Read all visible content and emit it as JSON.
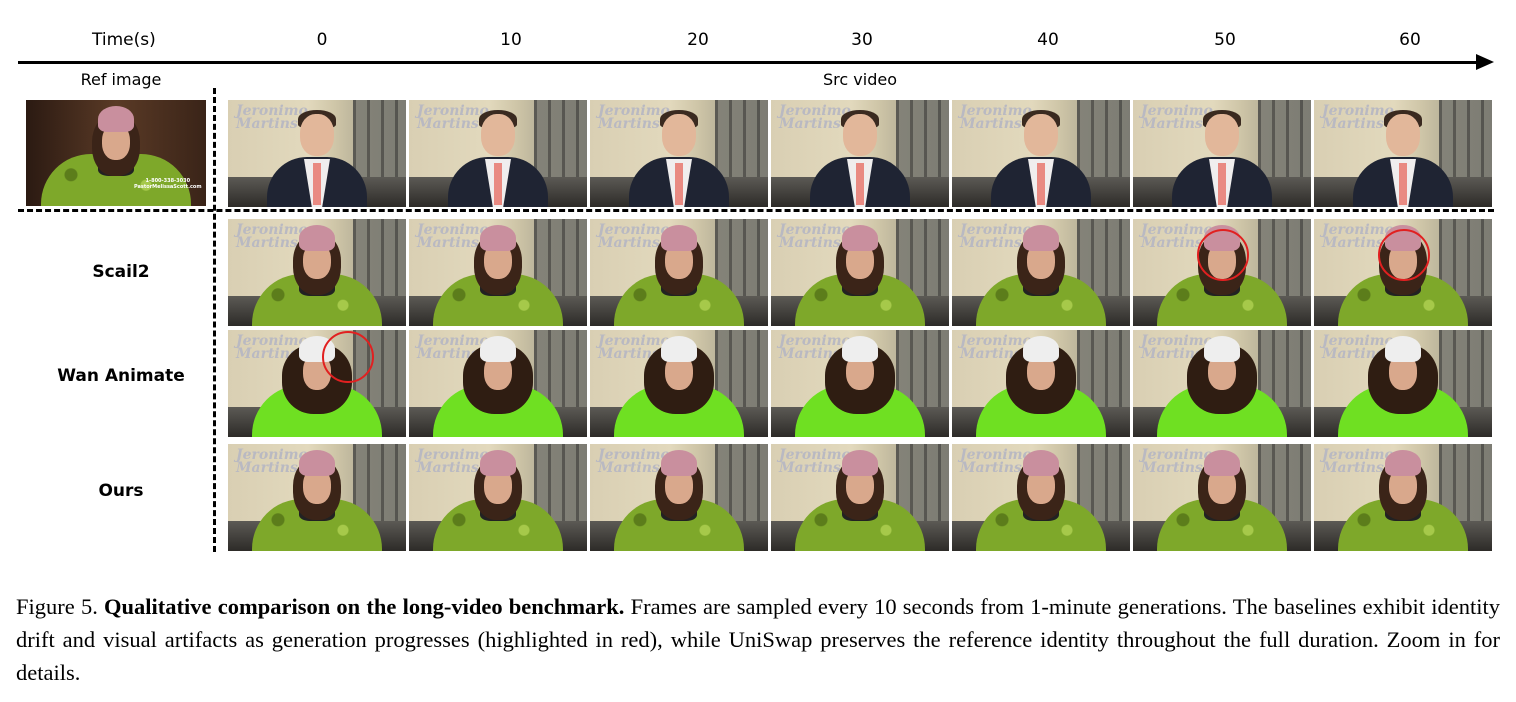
{
  "timeline": {
    "axis_label": "Time(s)",
    "ticks": [
      "0",
      "10",
      "20",
      "30",
      "40",
      "50",
      "60"
    ]
  },
  "columns": {
    "ref_label": "Ref image",
    "src_label": "Src video"
  },
  "ref_image": {
    "watermark_line1": "1-800-338-3030",
    "watermark_line2": "PastorMelissaScott.com"
  },
  "frame_logo": "Jeronimo Martins",
  "rows": [
    {
      "label": "Scail2",
      "highlight_frames": [
        5,
        6
      ]
    },
    {
      "label": "Wan Animate",
      "highlight_frames": [
        0
      ]
    },
    {
      "label": "Ours",
      "highlight_frames": []
    }
  ],
  "colors": {
    "highlight": "#e12020",
    "axis": "#000000"
  },
  "caption": {
    "figure_label": "Figure 5.",
    "bold_title": "Qualitative comparison on the long-video benchmark.",
    "body": "Frames are sampled every 10 seconds from 1-minute generations. The baselines exhibit identity drift and visual artifacts as generation progresses (highlighted in red), while UniSwap preserves the reference identity throughout the full duration. Zoom in for details."
  }
}
